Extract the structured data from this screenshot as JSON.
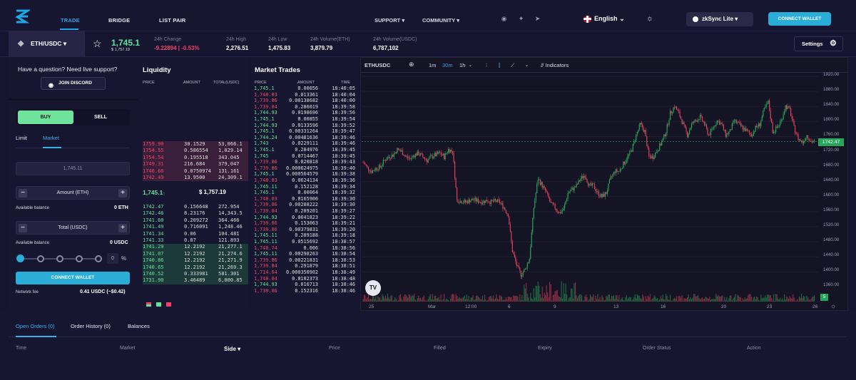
{
  "nav": {
    "tabs": [
      "TRADE",
      "BRIDGE",
      "LIST PAIR"
    ],
    "support": "SUPPORT",
    "community": "COMMUNITY",
    "language": "English",
    "network": "zkSync Lite",
    "connect": "CONNECT WALLET"
  },
  "ticker": {
    "pair": "ETH/USDC",
    "price": "1,745.1",
    "price_usd": "$ 1,757.19",
    "stats": [
      {
        "label": "24h Change",
        "value": "-9.22894 | -0.53%"
      },
      {
        "label": "24h High",
        "value": "2,276.51"
      },
      {
        "label": "24h Low",
        "value": "1,475.83"
      },
      {
        "label": "24h Volume(ETH)",
        "value": "3,879.79"
      },
      {
        "label": "24h Volume(USDC)",
        "value": "6,787,102"
      }
    ],
    "settings": "Settings"
  },
  "order_form": {
    "question": "Have a question? Need live support?",
    "discord": "JOIN DISCORD",
    "buy": "BUY",
    "sell": "SELL",
    "limit": "Limit",
    "market": "Market",
    "price_placeholder": "1,745.11",
    "amount_label": "Amount (ETH)",
    "available_label": "Available balance",
    "available_eth": "0 ETH",
    "total_label": "Total (USDC)",
    "available_usdc": "0 USDC",
    "percent": "0",
    "percent_sign": "%",
    "connect": "CONNECT WALLET",
    "fee_label": "Network fee",
    "fee_value": "0.41 USDC (~$0.42)"
  },
  "liquidity": {
    "title": "Liquidity",
    "headers": [
      "PRICE",
      "AMOUNT",
      "TOTAL(USDC)"
    ],
    "asks": [
      [
        "1759.90",
        "30.1529",
        "53,066.1"
      ],
      [
        "1754.55",
        "0.586554",
        "1,029.14"
      ],
      [
        "1754.54",
        "0.195518",
        "343.045"
      ],
      [
        "1749.31",
        "216.684",
        "379,047"
      ],
      [
        "1746.66",
        "0.0750974",
        "131.161"
      ],
      [
        "1742.49",
        "13.9500",
        "24,309.1"
      ]
    ],
    "mid_price": "1,745.1",
    "mid_usd": "$ 1,757.19",
    "bids": [
      [
        "1742.47",
        "0.156648",
        "272.954"
      ],
      [
        "1742.46",
        "8.23176",
        "14,343.5"
      ],
      [
        "1741.60",
        "0.209272",
        "364.466"
      ],
      [
        "1741.49",
        "0.716091",
        "1,248.46"
      ],
      [
        "1741.34",
        "0.06",
        "104.481"
      ],
      [
        "1741.33",
        "0.07",
        "121.893"
      ],
      [
        "1741.29",
        "12.2192",
        "21,277.1"
      ],
      [
        "1741.07",
        "12.2192",
        "21,274.6"
      ],
      [
        "1740.86",
        "12.2192",
        "21,271.9"
      ],
      [
        "1740.65",
        "12.2192",
        "21,269.3"
      ],
      [
        "1740.52",
        "0.333981",
        "581.301"
      ],
      [
        "1731.90",
        "3.46489",
        "6,000.85"
      ]
    ]
  },
  "market_trades": {
    "title": "Market Trades",
    "headers": [
      "PRICE",
      "AMOUNT",
      "TIME"
    ],
    "rows": [
      [
        "1,745.1",
        "0.00056",
        "18:40:05",
        "g"
      ],
      [
        "1,740.03",
        "0.013361",
        "18:40:04",
        "r"
      ],
      [
        "1,739.86",
        "0.00138682",
        "18:40:00",
        "r"
      ],
      [
        "1,739.84",
        "0.286019",
        "18:39:58",
        "r"
      ],
      [
        "1,744.93",
        "0.0198696",
        "18:39:56",
        "g"
      ],
      [
        "1,745.1",
        "0.00855",
        "18:39:54",
        "g"
      ],
      [
        "1,744.93",
        "0.0133596",
        "18:39:52",
        "g"
      ],
      [
        "1,745.1",
        "0.00331264",
        "18:39:47",
        "g"
      ],
      [
        "1,744.24",
        "0.00481636",
        "18:39:46",
        "g"
      ],
      [
        "1,743",
        "0.0229111",
        "18:39:46",
        "g"
      ],
      [
        "1,745.1",
        "0.284976",
        "18:39:45",
        "g"
      ],
      [
        "1,745",
        "0.0714467",
        "18:39:45",
        "g"
      ],
      [
        "1,739.86",
        "0.020818",
        "18:39:43",
        "r"
      ],
      [
        "1,739.86",
        "0.000624975",
        "18:39:40",
        "r"
      ],
      [
        "1,745.1",
        "0.000564579",
        "18:39:38",
        "g"
      ],
      [
        "1,740.03",
        "0.0624134",
        "18:39:36",
        "r"
      ],
      [
        "1,745.11",
        "0.152128",
        "18:39:34",
        "g"
      ],
      [
        "1,745.1",
        "0.00064",
        "18:39:32",
        "g"
      ],
      [
        "1,740.03",
        "0.0165906",
        "18:39:30",
        "r"
      ],
      [
        "1,739.86",
        "0.00288222",
        "18:39:30",
        "r"
      ],
      [
        "1,739.84",
        "0.289201",
        "18:39:27",
        "r"
      ],
      [
        "1,744.93",
        "0.0641823",
        "18:39:22",
        "g"
      ],
      [
        "1,739.86",
        "0.153063",
        "18:39:21",
        "r"
      ],
      [
        "1,739.86",
        "0.00379831",
        "18:39:20",
        "r"
      ],
      [
        "1,745.11",
        "0.289188",
        "18:39:18",
        "g"
      ],
      [
        "1,745.11",
        "0.0515692",
        "18:38:57",
        "g"
      ],
      [
        "1,740.74",
        "0.006",
        "18:38:56",
        "r"
      ],
      [
        "1,745.11",
        "0.00298263",
        "18:38:54",
        "g"
      ],
      [
        "1,739.86",
        "0.00221831",
        "18:38:53",
        "r"
      ],
      [
        "1,739.84",
        "0.291879",
        "18:38:51",
        "r"
      ],
      [
        "1,714.64",
        "0.000350902",
        "18:38:49",
        "r"
      ],
      [
        "1,740.04",
        "0.0102373",
        "18:38:48",
        "r"
      ],
      [
        "1,744.93",
        "0.016713",
        "18:38:46",
        "g"
      ],
      [
        "1,739.86",
        "0.152316",
        "18:38:46",
        "r"
      ]
    ]
  },
  "chart": {
    "symbol": "ETHUSDC",
    "intervals": [
      "1m",
      "30m",
      "1h"
    ],
    "indicators": "Indicators",
    "last_price": "1742.47",
    "volume_label": "5",
    "y_ticks": [
      "1920.00",
      "1880.00",
      "1840.00",
      "1800.00",
      "1760.00",
      "1720.00",
      "1680.00",
      "1640.00",
      "1600.00",
      "1560.00",
      "1520.00",
      "1480.00",
      "1440.00",
      "1400.00",
      "1360.00"
    ],
    "x_ticks": [
      "25",
      "Mar",
      "12:00",
      "6",
      "9",
      "13",
      "16",
      "20",
      "23",
      "26"
    ],
    "tv_logo": "TV"
  },
  "chart_data": {
    "type": "candlestick",
    "symbol": "ETHUSDC",
    "ylim": [
      1340,
      1930
    ],
    "points": [
      1685,
      1670,
      1660,
      1668,
      1672,
      1690,
      1700,
      1705,
      1720,
      1715,
      1700,
      1695,
      1705,
      1710,
      1700,
      1690,
      1700,
      1705,
      1710,
      1700,
      1720,
      1715,
      1580,
      1578,
      1575,
      1580,
      1582,
      1578,
      1576,
      1580,
      1575,
      1578,
      1575,
      1560,
      1540,
      1440,
      1400,
      1375,
      1390,
      1420,
      1560,
      1640,
      1620,
      1600,
      1570,
      1560,
      1545,
      1555,
      1600,
      1610,
      1620,
      1640,
      1650,
      1620,
      1620,
      1600,
      1590,
      1600,
      1640,
      1660,
      1660,
      1680,
      1700,
      1720,
      1760,
      1790,
      1770,
      1700,
      1700,
      1720,
      1740,
      1770,
      1820,
      1840,
      1820,
      1790,
      1760,
      1790,
      1800,
      1810,
      1790,
      1760,
      1780,
      1800,
      1790,
      1760,
      1770,
      1800,
      1790,
      1780,
      1770,
      1760,
      1780,
      1790,
      1830,
      1850,
      1770,
      1780,
      1800,
      1840,
      1830,
      1780,
      1750,
      1740,
      1760,
      1742
    ]
  },
  "bottom": {
    "tabs": [
      "Open Orders (0)",
      "Order History (0)",
      "Balances"
    ],
    "columns": [
      "Time",
      "Market",
      "Side",
      "Price",
      "Filled",
      "Expiry",
      "Order Status",
      "Action"
    ]
  },
  "colors": {
    "green": "#5fe39a",
    "red": "#f0416a",
    "accent": "#2aaed8"
  }
}
